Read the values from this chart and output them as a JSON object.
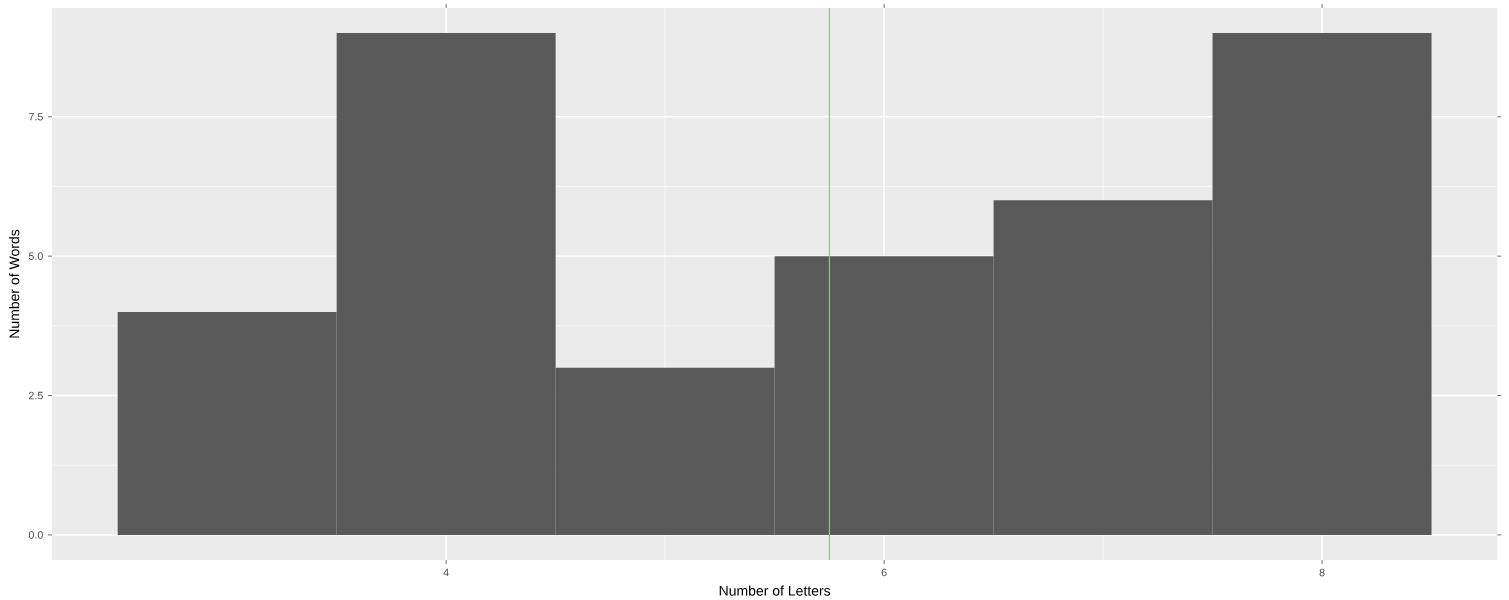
{
  "chart_data": {
    "type": "histogram",
    "xlabel": "Number of Letters",
    "ylabel": "Number of Words",
    "bins": [
      2.5,
      3.5,
      4.5,
      5.5,
      6.5,
      7.5,
      8.5
    ],
    "values": [
      4,
      9,
      3,
      5,
      6,
      9
    ],
    "color": "#595959",
    "xlim": [
      2.2,
      8.8
    ],
    "ylim": [
      -0.45,
      9.45
    ],
    "xticks": [
      4,
      6,
      8
    ],
    "yticks": [
      {
        "value": 0,
        "label": "0.0"
      },
      {
        "value": 2.5,
        "label": "2.5"
      },
      {
        "value": 5,
        "label": "5.0"
      },
      {
        "value": 7.5,
        "label": "7.5"
      }
    ],
    "grid": true,
    "ref_lines": [
      {
        "axis": "x",
        "value": 5.75,
        "color": "#5ce65c"
      }
    ]
  }
}
